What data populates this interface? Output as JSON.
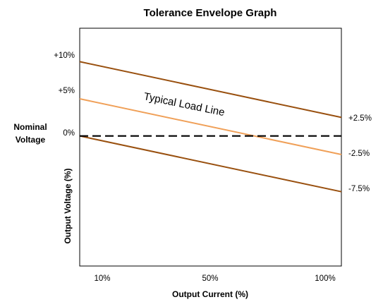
{
  "chart_data": {
    "type": "line",
    "title": "Tolerance Envelope Graph",
    "xlabel": "Output Current (%)",
    "ylabel": "Output Voltage (%)",
    "x_ticks": [
      "10%",
      "50%",
      "100%"
    ],
    "y_ticks_left": [
      "+10%",
      "+5%",
      "0%"
    ],
    "y_ticks_right": [
      "+2.5%",
      "-2.5%",
      "-7.5%"
    ],
    "nominal_label": [
      "Nominal",
      "Voltage"
    ],
    "annotation": "Typical Load Line",
    "xlim": [
      10,
      100
    ],
    "ylim": [
      -17.5,
      14.5
    ],
    "grid": false,
    "series": [
      {
        "x": [
          10,
          100
        ],
        "y": [
          10,
          2.5
        ],
        "color": "#99500f",
        "dash": false
      },
      {
        "name": "Typical Load Line",
        "x": [
          10,
          100
        ],
        "y": [
          5,
          -2.5
        ],
        "color": "#f0a058",
        "dash": false
      },
      {
        "x": [
          10,
          100
        ],
        "y": [
          0,
          -7.5
        ],
        "color": "#99500f",
        "dash": false
      },
      {
        "x": [
          10,
          100
        ],
        "y": [
          0,
          0
        ],
        "color": "#000000",
        "dash": true
      }
    ]
  }
}
